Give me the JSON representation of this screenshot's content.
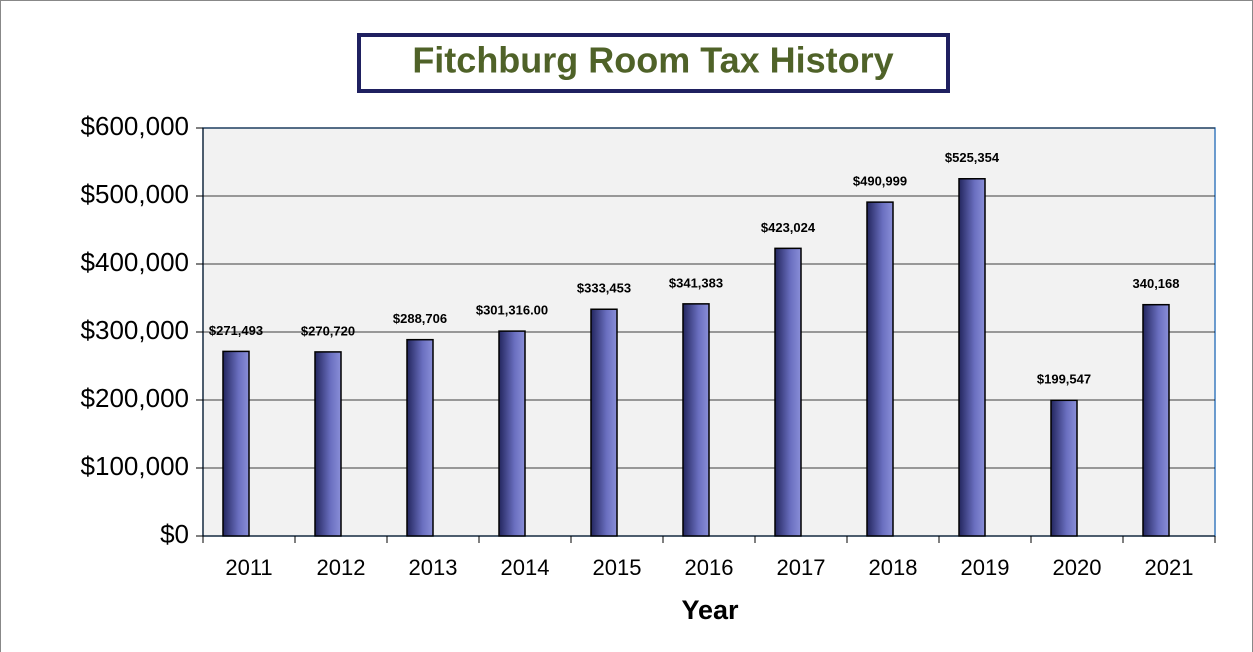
{
  "chart_data": {
    "type": "bar",
    "title": "Fitchburg Room Tax History",
    "x_label": "Year",
    "categories": [
      "2011",
      "2012",
      "2013",
      "2014",
      "2015",
      "2016",
      "2017",
      "2018",
      "2019",
      "2020",
      "2021"
    ],
    "values": [
      271493,
      270720,
      288706,
      301316,
      333453,
      341383,
      423024,
      490999,
      525354,
      199547,
      340168
    ],
    "value_labels": [
      "$271,493",
      "$270,720",
      "$288,706",
      "$301,316.00",
      "$333,453",
      "$341,383",
      "$423,024",
      "$490,999",
      "$525,354",
      "$199,547",
      "340,168"
    ],
    "color": "#4b4f9e",
    "ylim": [
      0,
      600000
    ],
    "yticks": [
      {
        "value": 0,
        "label": "$0"
      },
      {
        "value": 100000,
        "label": "$100,000"
      },
      {
        "value": 200000,
        "label": "$200,000"
      },
      {
        "value": 300000,
        "label": "$300,000"
      },
      {
        "value": 400000,
        "label": "$400,000"
      },
      {
        "value": 500000,
        "label": "$500,000"
      },
      {
        "value": 600000,
        "label": "$600,000"
      }
    ],
    "grid": true
  }
}
